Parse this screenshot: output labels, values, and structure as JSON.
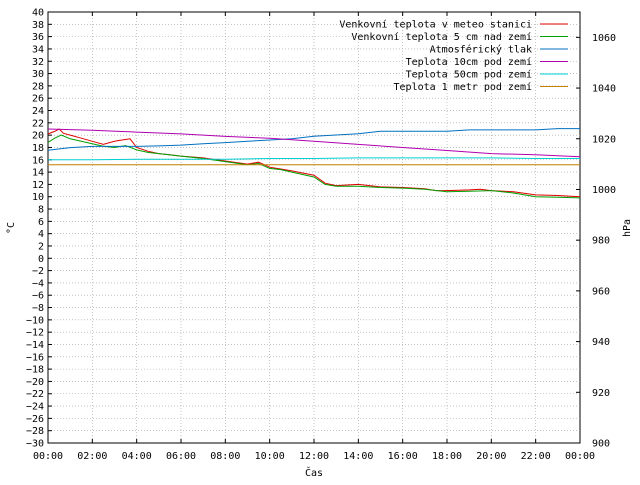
{
  "chart_data": {
    "type": "line",
    "xlabel": "Čas",
    "ylabel_left": "°C",
    "ylabel_right": "hPa",
    "x_ticks": [
      "00:00",
      "02:00",
      "04:00",
      "06:00",
      "08:00",
      "10:00",
      "12:00",
      "14:00",
      "16:00",
      "18:00",
      "20:00",
      "22:00",
      "00:00"
    ],
    "x_range_hours": [
      0,
      24
    ],
    "ylim_left": [
      -30,
      40
    ],
    "y_ticks_left": [
      40,
      38,
      36,
      34,
      32,
      30,
      28,
      26,
      24,
      22,
      20,
      18,
      16,
      14,
      12,
      10,
      8,
      6,
      4,
      2,
      0,
      -2,
      -4,
      -6,
      -8,
      -10,
      -12,
      -14,
      -16,
      -18,
      -20,
      -22,
      -24,
      -26,
      -28,
      -30
    ],
    "ylim_right": [
      900,
      1070
    ],
    "y_ticks_right": [
      1060,
      1040,
      1020,
      1000,
      980,
      960,
      940,
      920,
      900
    ],
    "grid": true,
    "legend_position": "top-right",
    "series": [
      {
        "name": "Venkovní teplota v meteo stanici",
        "color": "#e00000",
        "axis": "left",
        "x": [
          0,
          0.3,
          0.5,
          0.7,
          1.0,
          1.5,
          2.0,
          2.5,
          3.0,
          3.3,
          3.7,
          4.0,
          4.5,
          5.0,
          5.5,
          6.0,
          7.0,
          8.0,
          9.0,
          9.5,
          10.0,
          10.5,
          11.0,
          12.0,
          12.5,
          13.0,
          13.5,
          14.0,
          14.5,
          15.0,
          16.0,
          17.0,
          17.5,
          18.0,
          19.0,
          19.5,
          20.0,
          21.0,
          22.0,
          23.0,
          24.0
        ],
        "values": [
          20.2,
          20.6,
          21.0,
          20.3,
          20.0,
          19.5,
          19.0,
          18.5,
          19.0,
          19.2,
          19.4,
          18.0,
          17.4,
          17.0,
          16.8,
          16.6,
          16.3,
          15.8,
          15.3,
          15.6,
          14.8,
          14.5,
          14.2,
          13.5,
          12.2,
          11.8,
          11.9,
          12.0,
          11.8,
          11.6,
          11.5,
          11.3,
          11.0,
          11.0,
          11.1,
          11.2,
          11.0,
          10.8,
          10.3,
          10.2,
          10.0
        ]
      },
      {
        "name": "Venkovní teplota 5 cm nad zemí",
        "color": "#00a000",
        "axis": "left",
        "x": [
          0,
          0.3,
          0.6,
          1.0,
          1.5,
          2.0,
          2.5,
          3.0,
          3.5,
          4.0,
          4.5,
          5.0,
          6.0,
          7.0,
          8.0,
          9.0,
          9.5,
          10.0,
          10.5,
          11.0,
          12.0,
          12.5,
          13.0,
          14.0,
          15.0,
          16.0,
          17.0,
          18.0,
          19.0,
          20.0,
          21.0,
          22.0,
          23.0,
          24.0
        ],
        "values": [
          18.8,
          19.5,
          20.0,
          19.4,
          19.0,
          18.6,
          18.2,
          18.0,
          18.3,
          17.6,
          17.2,
          17.0,
          16.6,
          16.2,
          15.7,
          15.2,
          15.4,
          14.6,
          14.4,
          14.0,
          13.2,
          12.0,
          11.7,
          11.7,
          11.5,
          11.4,
          11.2,
          10.8,
          10.9,
          11.0,
          10.6,
          10.0,
          9.9,
          9.8
        ]
      },
      {
        "name": "Atmosférický tlak",
        "color": "#0070c0",
        "axis": "right",
        "x": [
          0,
          1,
          2,
          3,
          4,
          5,
          6,
          7,
          8,
          9,
          10,
          11,
          12,
          13,
          14,
          15,
          16,
          17,
          18,
          19,
          20,
          21,
          22,
          23,
          24
        ],
        "values": [
          1015.5,
          1016.5,
          1017,
          1017,
          1017,
          1017.2,
          1017.5,
          1018,
          1018.5,
          1019,
          1019.5,
          1020,
          1021,
          1021.5,
          1022,
          1023,
          1023,
          1023,
          1023,
          1023.5,
          1023.5,
          1023.5,
          1023.5,
          1024,
          1024
        ]
      },
      {
        "name": "Teplota 10cm pod zemí",
        "color": "#b000b0",
        "axis": "left",
        "x": [
          0,
          2,
          4,
          6,
          8,
          10,
          12,
          14,
          16,
          18,
          20,
          22,
          24
        ],
        "values": [
          21.0,
          20.8,
          20.5,
          20.2,
          19.8,
          19.5,
          19.0,
          18.5,
          18.0,
          17.5,
          17.0,
          16.8,
          16.5
        ]
      },
      {
        "name": "Teplota 50cm pod zemí",
        "color": "#00d0d0",
        "axis": "left",
        "x": [
          0,
          2,
          4,
          6,
          8,
          10,
          12,
          14,
          16,
          18,
          20,
          22,
          24
        ],
        "values": [
          16.0,
          16.0,
          16.1,
          16.1,
          16.1,
          16.2,
          16.2,
          16.3,
          16.3,
          16.3,
          16.3,
          16.2,
          16.2
        ]
      },
      {
        "name": "Teplota 1 metr pod zemí",
        "color": "#c08000",
        "axis": "left",
        "x": [
          0,
          24
        ],
        "values": [
          15.2,
          15.2
        ]
      }
    ]
  }
}
